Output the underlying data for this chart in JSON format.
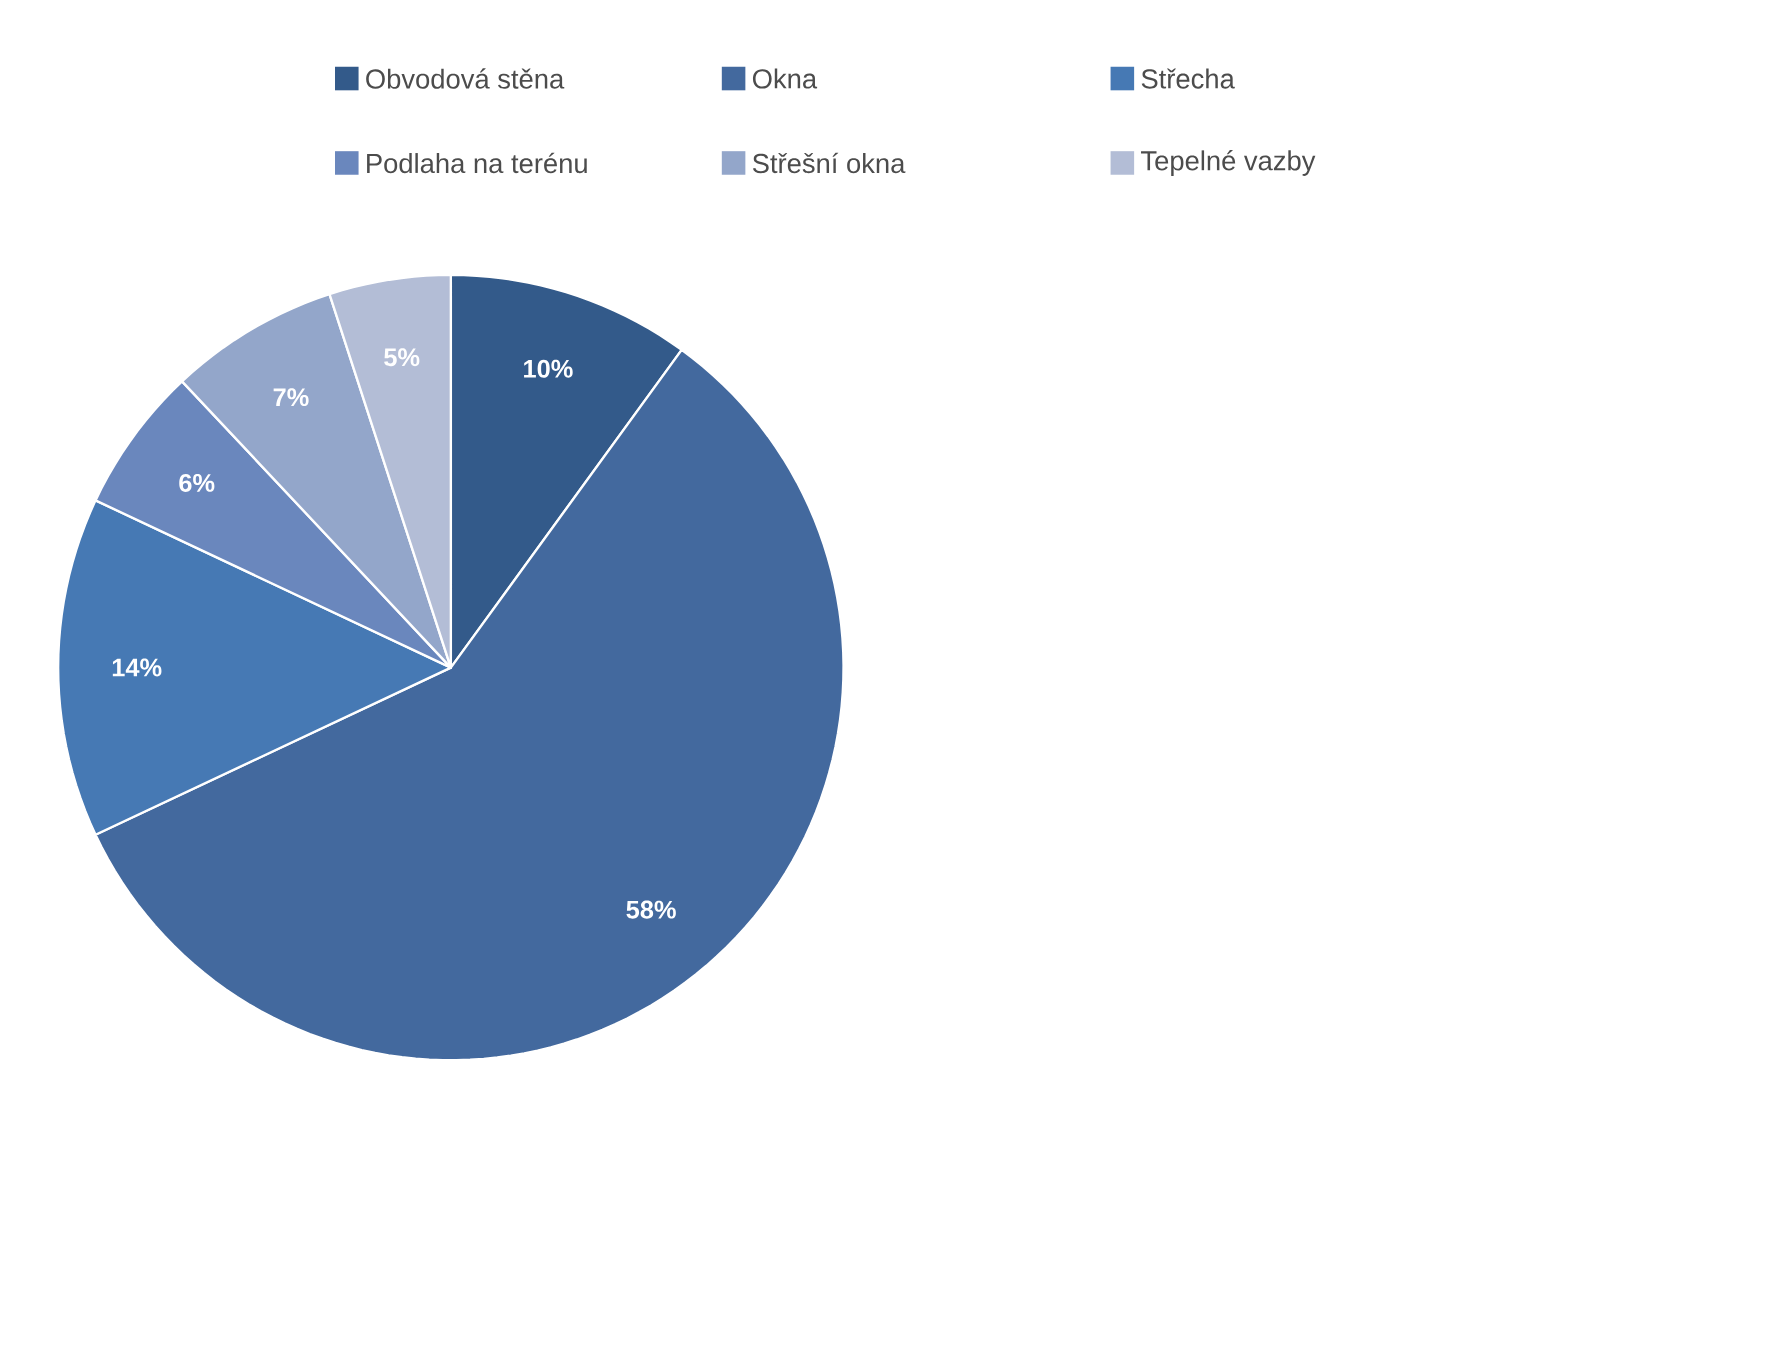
{
  "chart_data": {
    "type": "pie",
    "categories": [
      "Obvodová stěna",
      "Okna",
      "Střecha",
      "Podlaha na terénu",
      "Střešní okna",
      "Tepelné vazby"
    ],
    "values": [
      10,
      58,
      14,
      6,
      7,
      5
    ],
    "colors": [
      "#335a8a",
      "#43699e",
      "#4679b4",
      "#6a87bd",
      "#93a6ca",
      "#b3bdd6"
    ],
    "value_labels": [
      "10%",
      "58%",
      "14%",
      "6%",
      "7%",
      "5%"
    ],
    "legend": "top"
  }
}
